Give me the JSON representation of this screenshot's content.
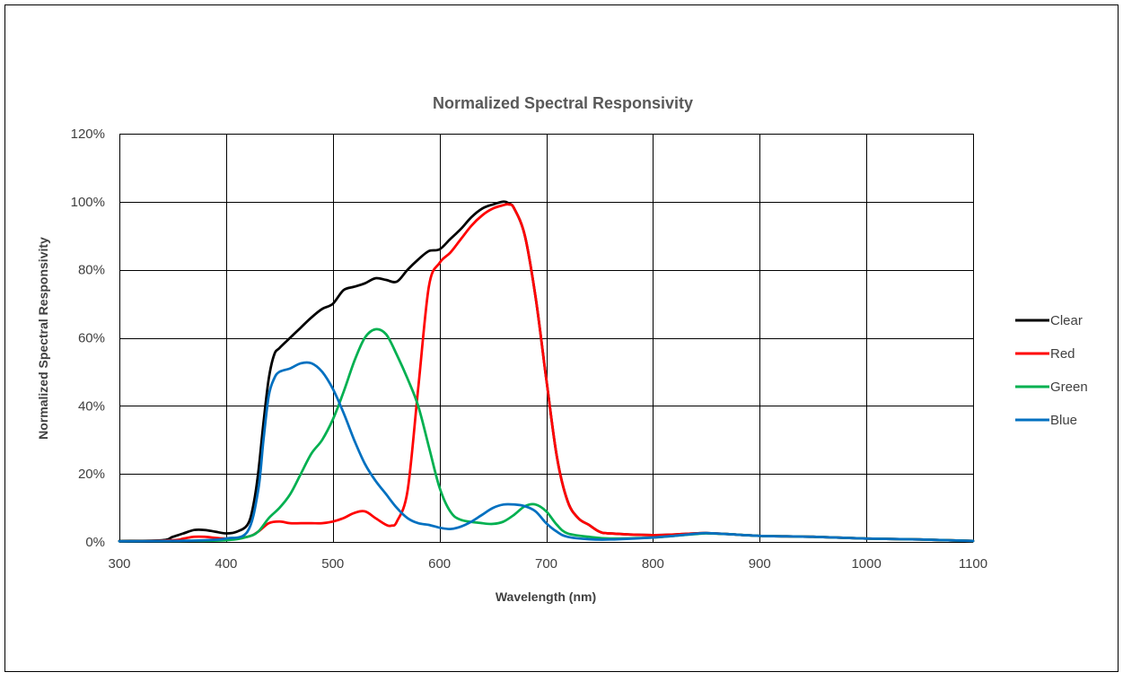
{
  "chart_data": {
    "type": "line",
    "title": "Normalized Spectral Responsivity",
    "xlabel": "Wavelength (nm)",
    "ylabel": "Normalized Spectral Responsivity",
    "xlim": [
      300,
      1100
    ],
    "ylim": [
      0,
      120
    ],
    "x_ticks": [
      300,
      400,
      500,
      600,
      700,
      800,
      900,
      1000,
      1100
    ],
    "x_tick_labels": [
      "300",
      "400",
      "500",
      "600",
      "700",
      "800",
      "900",
      "1000",
      "1100"
    ],
    "y_ticks": [
      0,
      20,
      40,
      60,
      80,
      100,
      120
    ],
    "y_tick_labels": [
      "0%",
      "20%",
      "40%",
      "60%",
      "80%",
      "100%",
      "120%"
    ],
    "grid": true,
    "legend_position": "right",
    "series": [
      {
        "name": "Clear",
        "color": "#000000",
        "points": [
          [
            300,
            0.3
          ],
          [
            340,
            0.5
          ],
          [
            350,
            1.5
          ],
          [
            360,
            2.5
          ],
          [
            370,
            3.5
          ],
          [
            380,
            3.5
          ],
          [
            390,
            3
          ],
          [
            400,
            2.5
          ],
          [
            410,
            3
          ],
          [
            420,
            5
          ],
          [
            425,
            10
          ],
          [
            430,
            20
          ],
          [
            435,
            35
          ],
          [
            440,
            48
          ],
          [
            445,
            55
          ],
          [
            450,
            57
          ],
          [
            460,
            60
          ],
          [
            470,
            63
          ],
          [
            480,
            66
          ],
          [
            490,
            68.5
          ],
          [
            500,
            70
          ],
          [
            510,
            74
          ],
          [
            520,
            75
          ],
          [
            530,
            76
          ],
          [
            540,
            77.5
          ],
          [
            550,
            77
          ],
          [
            560,
            76.5
          ],
          [
            570,
            80
          ],
          [
            580,
            83
          ],
          [
            590,
            85.5
          ],
          [
            600,
            86
          ],
          [
            610,
            89
          ],
          [
            620,
            92
          ],
          [
            630,
            95.5
          ],
          [
            640,
            98
          ],
          [
            650,
            99.2
          ],
          [
            660,
            100
          ],
          [
            665,
            99.5
          ],
          [
            670,
            98
          ],
          [
            680,
            90
          ],
          [
            690,
            72
          ],
          [
            700,
            48
          ],
          [
            710,
            25
          ],
          [
            720,
            12
          ],
          [
            730,
            7
          ],
          [
            740,
            5
          ],
          [
            750,
            3
          ],
          [
            760,
            2.5
          ],
          [
            800,
            2
          ],
          [
            820,
            2.2
          ],
          [
            840,
            2.5
          ],
          [
            850,
            2.6
          ],
          [
            870,
            2.3
          ],
          [
            900,
            1.8
          ],
          [
            950,
            1.5
          ],
          [
            1000,
            1
          ],
          [
            1050,
            0.7
          ],
          [
            1100,
            0.3
          ]
        ]
      },
      {
        "name": "Red",
        "color": "#ff0000",
        "points": [
          [
            300,
            0.2
          ],
          [
            350,
            0.5
          ],
          [
            360,
            1
          ],
          [
            370,
            1.5
          ],
          [
            380,
            1.5
          ],
          [
            400,
            1
          ],
          [
            420,
            1.5
          ],
          [
            430,
            3
          ],
          [
            440,
            5.5
          ],
          [
            450,
            6
          ],
          [
            460,
            5.5
          ],
          [
            470,
            5.5
          ],
          [
            480,
            5.5
          ],
          [
            490,
            5.5
          ],
          [
            500,
            6
          ],
          [
            510,
            7
          ],
          [
            520,
            8.5
          ],
          [
            530,
            9
          ],
          [
            540,
            7
          ],
          [
            550,
            5
          ],
          [
            555,
            4.8
          ],
          [
            560,
            6
          ],
          [
            570,
            15
          ],
          [
            580,
            45
          ],
          [
            590,
            75
          ],
          [
            600,
            82
          ],
          [
            610,
            85
          ],
          [
            620,
            89
          ],
          [
            630,
            93
          ],
          [
            640,
            96
          ],
          [
            650,
            98
          ],
          [
            660,
            99
          ],
          [
            665,
            99.2
          ],
          [
            670,
            98
          ],
          [
            680,
            90
          ],
          [
            690,
            72
          ],
          [
            700,
            48
          ],
          [
            710,
            25
          ],
          [
            720,
            12
          ],
          [
            730,
            7
          ],
          [
            740,
            5
          ],
          [
            750,
            3
          ],
          [
            760,
            2.5
          ],
          [
            800,
            2
          ],
          [
            820,
            2.2
          ],
          [
            840,
            2.5
          ],
          [
            850,
            2.6
          ],
          [
            870,
            2.3
          ],
          [
            900,
            1.8
          ],
          [
            950,
            1.5
          ],
          [
            1000,
            1
          ],
          [
            1050,
            0.7
          ],
          [
            1100,
            0.3
          ]
        ]
      },
      {
        "name": "Green",
        "color": "#00b050",
        "points": [
          [
            300,
            0.2
          ],
          [
            350,
            0.3
          ],
          [
            400,
            0.5
          ],
          [
            420,
            1.5
          ],
          [
            430,
            3
          ],
          [
            440,
            7
          ],
          [
            450,
            10
          ],
          [
            460,
            14
          ],
          [
            470,
            20
          ],
          [
            480,
            26
          ],
          [
            490,
            30
          ],
          [
            500,
            36
          ],
          [
            510,
            44
          ],
          [
            520,
            53
          ],
          [
            530,
            60
          ],
          [
            540,
            62.5
          ],
          [
            550,
            61
          ],
          [
            560,
            55
          ],
          [
            570,
            48
          ],
          [
            580,
            40
          ],
          [
            590,
            28
          ],
          [
            600,
            16
          ],
          [
            610,
            9
          ],
          [
            620,
            6.5
          ],
          [
            640,
            5.5
          ],
          [
            650,
            5.3
          ],
          [
            660,
            6
          ],
          [
            670,
            8
          ],
          [
            680,
            10.5
          ],
          [
            690,
            11
          ],
          [
            700,
            9
          ],
          [
            710,
            5
          ],
          [
            720,
            2.5
          ],
          [
            740,
            1.5
          ],
          [
            760,
            1
          ],
          [
            800,
            1.3
          ],
          [
            820,
            1.8
          ],
          [
            840,
            2.3
          ],
          [
            850,
            2.5
          ],
          [
            870,
            2.3
          ],
          [
            900,
            1.8
          ],
          [
            950,
            1.5
          ],
          [
            1000,
            1
          ],
          [
            1050,
            0.7
          ],
          [
            1100,
            0.3
          ]
        ]
      },
      {
        "name": "Blue",
        "color": "#0070c0",
        "points": [
          [
            300,
            0.2
          ],
          [
            350,
            0.3
          ],
          [
            380,
            0.5
          ],
          [
            400,
            1
          ],
          [
            420,
            3
          ],
          [
            430,
            15
          ],
          [
            435,
            30
          ],
          [
            440,
            43
          ],
          [
            445,
            48
          ],
          [
            450,
            50
          ],
          [
            460,
            51
          ],
          [
            470,
            52.5
          ],
          [
            480,
            52.5
          ],
          [
            490,
            50
          ],
          [
            500,
            45
          ],
          [
            510,
            38
          ],
          [
            520,
            30
          ],
          [
            530,
            23
          ],
          [
            540,
            18
          ],
          [
            550,
            14
          ],
          [
            560,
            10
          ],
          [
            570,
            7
          ],
          [
            580,
            5.5
          ],
          [
            590,
            5
          ],
          [
            600,
            4.2
          ],
          [
            610,
            3.8
          ],
          [
            620,
            4.5
          ],
          [
            630,
            6
          ],
          [
            640,
            8
          ],
          [
            650,
            10
          ],
          [
            660,
            11
          ],
          [
            670,
            11
          ],
          [
            680,
            10.5
          ],
          [
            690,
            9
          ],
          [
            700,
            5.5
          ],
          [
            710,
            3
          ],
          [
            720,
            1.5
          ],
          [
            740,
            0.8
          ],
          [
            760,
            0.7
          ],
          [
            800,
            1.3
          ],
          [
            820,
            1.8
          ],
          [
            840,
            2.4
          ],
          [
            850,
            2.6
          ],
          [
            870,
            2.3
          ],
          [
            900,
            1.8
          ],
          [
            950,
            1.5
          ],
          [
            1000,
            1
          ],
          [
            1050,
            0.7
          ],
          [
            1100,
            0.3
          ]
        ]
      }
    ]
  }
}
